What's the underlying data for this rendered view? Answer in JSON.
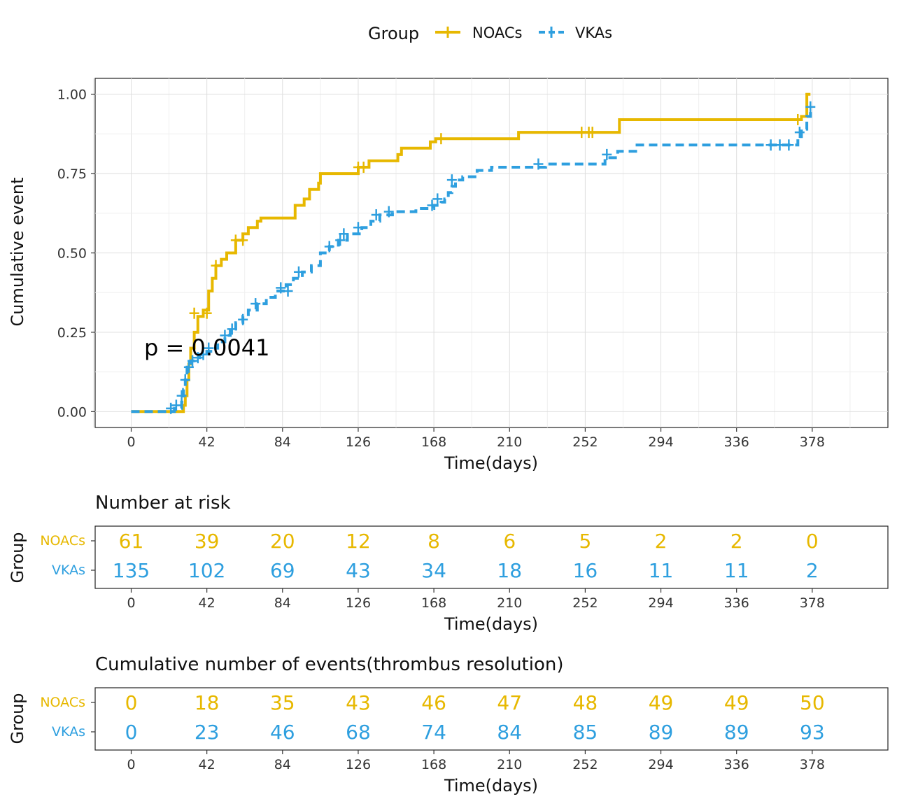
{
  "chart_data": {
    "type": "line",
    "subtype": "cumulative-event step curve",
    "legend": {
      "title": "Group",
      "position": "top"
    },
    "x": {
      "label": "Time(days)",
      "ticks": [
        0,
        42,
        84,
        126,
        168,
        210,
        252,
        294,
        336,
        378
      ],
      "range": [
        -20,
        420
      ]
    },
    "y": {
      "label": "Cumulative event",
      "ticks": [
        "0.00",
        "0.25",
        "0.50",
        "0.75",
        "1.00"
      ],
      "tick_values": [
        0,
        0.25,
        0.5,
        0.75,
        1.0
      ],
      "range": [
        -0.05,
        1.05
      ]
    },
    "grid": true,
    "annotation": "p = 0.0041",
    "series": [
      {
        "name": "NOACs",
        "color": "#E7B800",
        "dash": "solid",
        "steps": [
          [
            0,
            0
          ],
          [
            28,
            0
          ],
          [
            29,
            0.02
          ],
          [
            30,
            0.05
          ],
          [
            31,
            0.1
          ],
          [
            32,
            0.15
          ],
          [
            33,
            0.2
          ],
          [
            35,
            0.25
          ],
          [
            37,
            0.3
          ],
          [
            40,
            0.32
          ],
          [
            43,
            0.38
          ],
          [
            45,
            0.42
          ],
          [
            47,
            0.46
          ],
          [
            50,
            0.48
          ],
          [
            53,
            0.5
          ],
          [
            58,
            0.54
          ],
          [
            62,
            0.56
          ],
          [
            65,
            0.58
          ],
          [
            70,
            0.6
          ],
          [
            72,
            0.61
          ],
          [
            90,
            0.61
          ],
          [
            91,
            0.65
          ],
          [
            96,
            0.67
          ],
          [
            99,
            0.7
          ],
          [
            104,
            0.72
          ],
          [
            105,
            0.75
          ],
          [
            125,
            0.75
          ],
          [
            126,
            0.77
          ],
          [
            132,
            0.79
          ],
          [
            147,
            0.79
          ],
          [
            148,
            0.81
          ],
          [
            150,
            0.83
          ],
          [
            165,
            0.83
          ],
          [
            166,
            0.85
          ],
          [
            169,
            0.86
          ],
          [
            214,
            0.86
          ],
          [
            215,
            0.88
          ],
          [
            270,
            0.88
          ],
          [
            271,
            0.92
          ],
          [
            370,
            0.92
          ],
          [
            372,
            0.93
          ],
          [
            375,
            1.0
          ],
          [
            377,
            1.0
          ]
        ],
        "censored": [
          [
            35,
            0.31
          ],
          [
            42,
            0.31
          ],
          [
            47,
            0.46
          ],
          [
            58,
            0.54
          ],
          [
            62,
            0.54
          ],
          [
            126,
            0.77
          ],
          [
            129,
            0.77
          ],
          [
            172,
            0.86
          ],
          [
            250,
            0.88
          ],
          [
            254,
            0.88
          ],
          [
            256,
            0.88
          ],
          [
            370,
            0.92
          ]
        ]
      },
      {
        "name": "VKAs",
        "color": "#2E9FDF",
        "dash": "dashed",
        "steps": [
          [
            0,
            0
          ],
          [
            20,
            0
          ],
          [
            24,
            0.01
          ],
          [
            28,
            0.03
          ],
          [
            29,
            0.07
          ],
          [
            30,
            0.1
          ],
          [
            31,
            0.14
          ],
          [
            33,
            0.16
          ],
          [
            35,
            0.17
          ],
          [
            38,
            0.18
          ],
          [
            42,
            0.19
          ],
          [
            45,
            0.2
          ],
          [
            48,
            0.22
          ],
          [
            52,
            0.24
          ],
          [
            55,
            0.26
          ],
          [
            58,
            0.28
          ],
          [
            62,
            0.3
          ],
          [
            65,
            0.32
          ],
          [
            70,
            0.34
          ],
          [
            75,
            0.36
          ],
          [
            80,
            0.38
          ],
          [
            86,
            0.4
          ],
          [
            90,
            0.42
          ],
          [
            95,
            0.44
          ],
          [
            100,
            0.46
          ],
          [
            105,
            0.5
          ],
          [
            110,
            0.52
          ],
          [
            115,
            0.54
          ],
          [
            120,
            0.56
          ],
          [
            128,
            0.58
          ],
          [
            133,
            0.6
          ],
          [
            138,
            0.62
          ],
          [
            145,
            0.63
          ],
          [
            158,
            0.64
          ],
          [
            168,
            0.65
          ],
          [
            172,
            0.66
          ],
          [
            174,
            0.67
          ],
          [
            176,
            0.69
          ],
          [
            178,
            0.71
          ],
          [
            180,
            0.73
          ],
          [
            184,
            0.74
          ],
          [
            192,
            0.76
          ],
          [
            200,
            0.77
          ],
          [
            230,
            0.78
          ],
          [
            263,
            0.8
          ],
          [
            270,
            0.82
          ],
          [
            280,
            0.84
          ],
          [
            369,
            0.84
          ],
          [
            370,
            0.86
          ],
          [
            372,
            0.89
          ],
          [
            375,
            0.93
          ],
          [
            377,
            0.96
          ]
        ],
        "censored": [
          [
            22,
            0.01
          ],
          [
            25,
            0.02
          ],
          [
            28,
            0.05
          ],
          [
            30,
            0.1
          ],
          [
            32,
            0.14
          ],
          [
            34,
            0.16
          ],
          [
            37,
            0.17
          ],
          [
            40,
            0.18
          ],
          [
            43,
            0.2
          ],
          [
            52,
            0.24
          ],
          [
            56,
            0.26
          ],
          [
            62,
            0.29
          ],
          [
            69,
            0.34
          ],
          [
            83,
            0.39
          ],
          [
            87,
            0.38
          ],
          [
            93,
            0.44
          ],
          [
            110,
            0.52
          ],
          [
            116,
            0.54
          ],
          [
            118,
            0.56
          ],
          [
            126,
            0.58
          ],
          [
            136,
            0.62
          ],
          [
            143,
            0.63
          ],
          [
            167,
            0.65
          ],
          [
            170,
            0.67
          ],
          [
            178,
            0.73
          ],
          [
            226,
            0.78
          ],
          [
            264,
            0.81
          ],
          [
            355,
            0.84
          ],
          [
            360,
            0.84
          ],
          [
            365,
            0.84
          ],
          [
            371,
            0.88
          ],
          [
            377,
            0.96
          ]
        ]
      }
    ]
  },
  "risk_table": {
    "title": "Number at risk",
    "ylabel": "Group",
    "xlabel": "Time(days)",
    "times": [
      0,
      42,
      84,
      126,
      168,
      210,
      252,
      294,
      336,
      378
    ],
    "rows": [
      {
        "name": "NOACs",
        "color": "#E7B800",
        "values": [
          "61",
          "39",
          "20",
          "12",
          "8",
          "6",
          "5",
          "2",
          "2",
          "0"
        ]
      },
      {
        "name": "VKAs",
        "color": "#2E9FDF",
        "values": [
          "135",
          "102",
          "69",
          "43",
          "34",
          "18",
          "16",
          "11",
          "11",
          "2"
        ]
      }
    ]
  },
  "events_table": {
    "title": "Cumulative number of events(thrombus resolution)",
    "ylabel": "Group",
    "xlabel": "Time(days)",
    "times": [
      0,
      42,
      84,
      126,
      168,
      210,
      252,
      294,
      336,
      378
    ],
    "rows": [
      {
        "name": "NOACs",
        "color": "#E7B800",
        "values": [
          "0",
          "18",
          "35",
          "43",
          "46",
          "47",
          "48",
          "49",
          "49",
          "50"
        ]
      },
      {
        "name": "VKAs",
        "color": "#2E9FDF",
        "values": [
          "0",
          "23",
          "46",
          "68",
          "74",
          "84",
          "85",
          "89",
          "89",
          "93"
        ]
      }
    ]
  }
}
